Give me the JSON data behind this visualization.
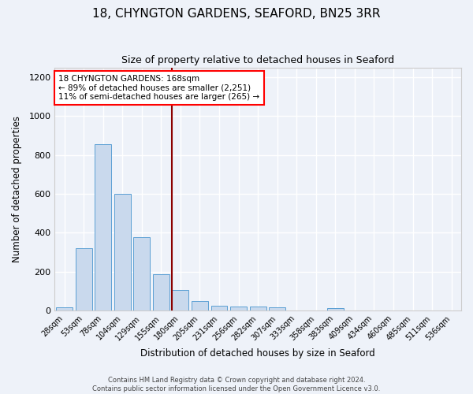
{
  "title1": "18, CHYNGTON GARDENS, SEAFORD, BN25 3RR",
  "title2": "Size of property relative to detached houses in Seaford",
  "xlabel": "Distribution of detached houses by size in Seaford",
  "ylabel": "Number of detached properties",
  "categories": [
    "28sqm",
    "53sqm",
    "78sqm",
    "104sqm",
    "129sqm",
    "155sqm",
    "180sqm",
    "205sqm",
    "231sqm",
    "256sqm",
    "282sqm",
    "307sqm",
    "333sqm",
    "358sqm",
    "383sqm",
    "409sqm",
    "434sqm",
    "460sqm",
    "485sqm",
    "511sqm",
    "536sqm"
  ],
  "values": [
    15,
    320,
    855,
    600,
    375,
    185,
    105,
    47,
    25,
    20,
    20,
    15,
    0,
    0,
    10,
    0,
    0,
    0,
    0,
    0,
    0
  ],
  "bar_color": "#c9d9ed",
  "bar_edge_color": "#5a9fd4",
  "property_line_color": "#8b0000",
  "annotation_line1": "18 CHYNGTON GARDENS: 168sqm",
  "annotation_line2": "← 89% of detached houses are smaller (2,251)",
  "annotation_line3": "11% of semi-detached houses are larger (265) →",
  "annotation_box_color": "white",
  "annotation_box_edge": "red",
  "ylim": [
    0,
    1250
  ],
  "yticks": [
    0,
    200,
    400,
    600,
    800,
    1000,
    1200
  ],
  "footer1": "Contains HM Land Registry data © Crown copyright and database right 2024.",
  "footer2": "Contains public sector information licensed under the Open Government Licence v3.0.",
  "bg_color": "#eef2f9",
  "grid_color": "white",
  "title1_fontsize": 11,
  "title2_fontsize": 9,
  "xlabel_fontsize": 8.5,
  "ylabel_fontsize": 8.5,
  "annotation_fontsize": 7.5,
  "xtick_fontsize": 7,
  "ytick_fontsize": 8,
  "footer_fontsize": 6
}
